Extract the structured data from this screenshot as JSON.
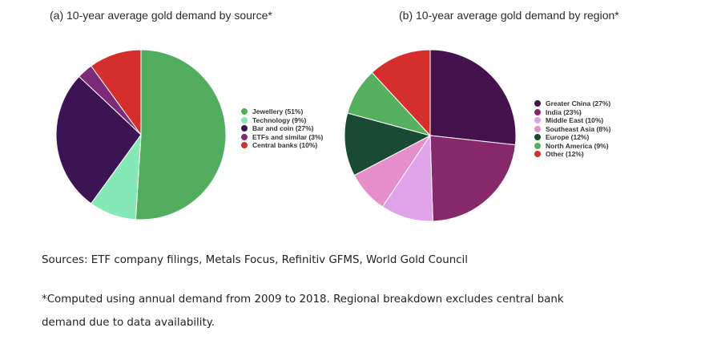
{
  "chart_data": [
    {
      "type": "pie",
      "title": "(a) 10-year average gold demand by source*",
      "start_angle_deg": 0,
      "legend_placement": "right",
      "slices": [
        {
          "label": "Jewellery (51%)",
          "value": 51,
          "color": "#52ad5e"
        },
        {
          "label": "Technology (9%)",
          "value": 9,
          "color": "#86e8b6"
        },
        {
          "label": "Bar and coin (27%)",
          "value": 27,
          "color": "#3c1353"
        },
        {
          "label": "ETFs and similar (3%)",
          "value": 3,
          "color": "#7d2a78"
        },
        {
          "label": "Central banks (10%)",
          "value": 10,
          "color": "#d42f2c"
        }
      ]
    },
    {
      "type": "pie",
      "title": "(b) 10-year average gold demand by region*",
      "start_angle_deg": 0,
      "legend_placement": "right",
      "slices": [
        {
          "label": "Greater China (27%)",
          "value": 27,
          "color": "#44134d"
        },
        {
          "label": "India (23%)",
          "value": 23,
          "color": "#87286a"
        },
        {
          "label": "Middle East (10%)",
          "value": 10,
          "color": "#e0a2e8"
        },
        {
          "label": "Southeast Asia (8%)",
          "value": 8,
          "color": "#e78fca"
        },
        {
          "label": "Europe (12%)",
          "value": 12,
          "color": "#1a4a33"
        },
        {
          "label": "North America (9%)",
          "value": 9,
          "color": "#56b15f"
        },
        {
          "label": "Other (12%)",
          "value": 12,
          "color": "#d42f2c"
        }
      ]
    }
  ],
  "footer": {
    "sources": "Sources: ETF company filings, Metals Focus, Refinitiv GFMS, World Gold Council",
    "note_line1": "*Computed using annual demand from 2009 to 2018. Regional breakdown excludes central bank",
    "note_line2": "demand due to data availability."
  }
}
